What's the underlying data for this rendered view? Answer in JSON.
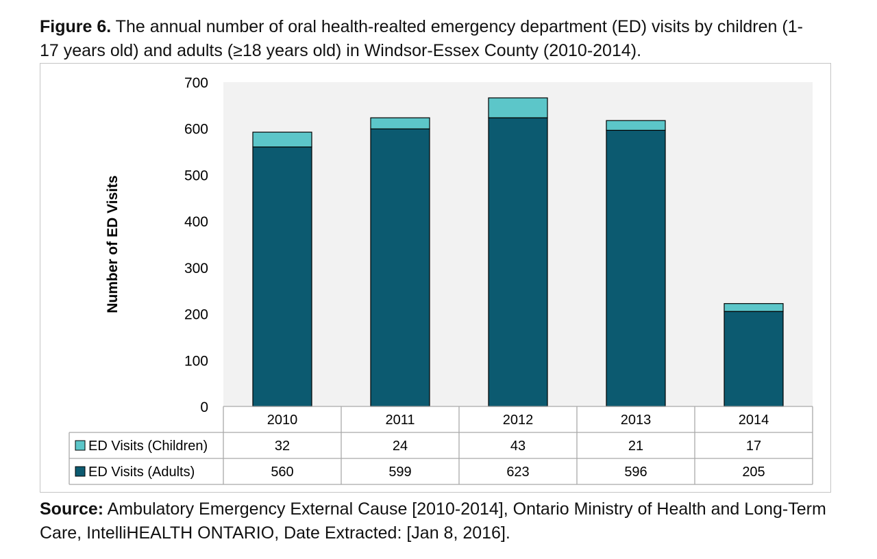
{
  "caption": {
    "label": "Figure 6.",
    "text": " The annual number of oral health-realted emergency department (ED) visits by children (1-17 years old) and adults (≥18 years old) in Windsor-Essex County (2010-2014)."
  },
  "source": {
    "label": "Source:",
    "text": " Ambulatory Emergency External Cause [2010-2014], Ontario Ministry of Health and Long-Term Care, IntelliHEALTH ONTARIO, Date Extracted: [Jan 8, 2016]."
  },
  "chart_data": {
    "type": "bar",
    "stacked": true,
    "categories": [
      "2010",
      "2011",
      "2012",
      "2013",
      "2014"
    ],
    "series": [
      {
        "name": "ED Visits (Adults)",
        "values": [
          560,
          599,
          623,
          596,
          205
        ],
        "color": "#0c5a70"
      },
      {
        "name": "ED Visits (Children)",
        "values": [
          32,
          24,
          43,
          21,
          17
        ],
        "color": "#5cc6c9"
      }
    ],
    "table_rows": [
      {
        "name": "ED Visits (Children)",
        "values": [
          "32",
          "24",
          "43",
          "21",
          "17"
        ],
        "color": "#5cc6c9"
      },
      {
        "name": "ED Visits (Adults)",
        "values": [
          "560",
          "599",
          "623",
          "596",
          "205"
        ],
        "color": "#0c5a70"
      }
    ],
    "ylabel": "Number of ED Visits",
    "ylim": [
      0,
      700
    ],
    "yticks": [
      "0",
      "100",
      "200",
      "300",
      "400",
      "500",
      "600",
      "700"
    ],
    "plot_background": "#f2f2f2",
    "grid": false,
    "legend": "data-table"
  }
}
